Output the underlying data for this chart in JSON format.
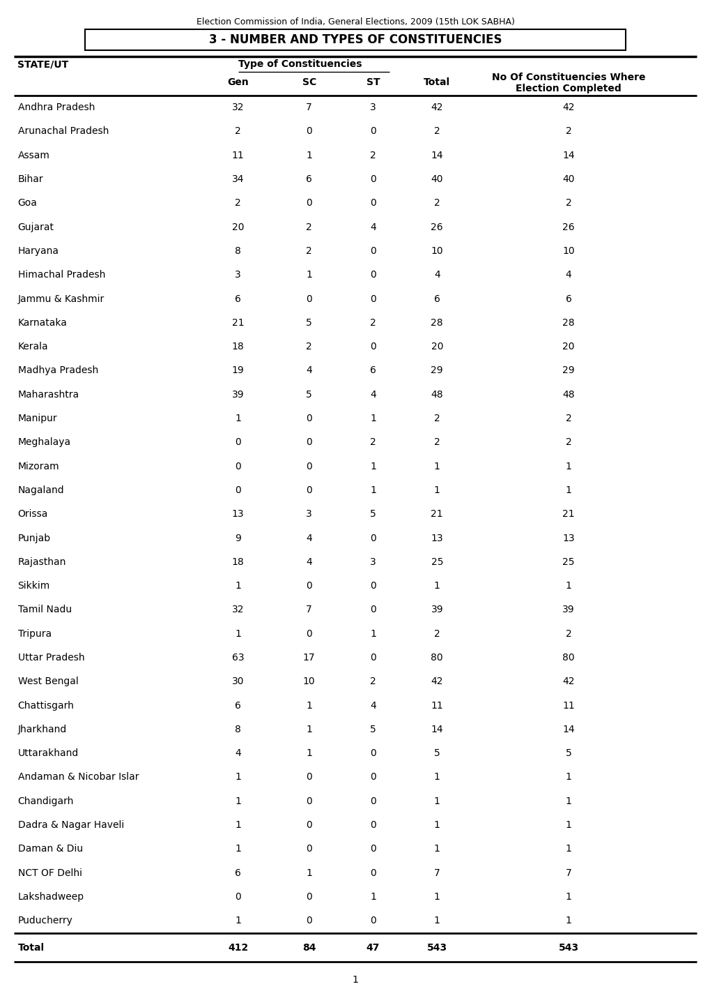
{
  "super_title": "Election Commission of India, General Elections, 2009 (15th LOK SABHA)",
  "title": "3 - NUMBER AND TYPES OF CONSTITUENCIES",
  "col_header1": "STATE/UT",
  "col_header2": "Type of Constituencies",
  "col_headers": [
    "Gen",
    "SC",
    "ST",
    "Total",
    "No Of Constituencies Where\nElection Completed"
  ],
  "rows": [
    [
      "Andhra Pradesh",
      32,
      7,
      3,
      42,
      42
    ],
    [
      "Arunachal Pradesh",
      2,
      0,
      0,
      2,
      2
    ],
    [
      "Assam",
      11,
      1,
      2,
      14,
      14
    ],
    [
      "Bihar",
      34,
      6,
      0,
      40,
      40
    ],
    [
      "Goa",
      2,
      0,
      0,
      2,
      2
    ],
    [
      "Gujarat",
      20,
      2,
      4,
      26,
      26
    ],
    [
      "Haryana",
      8,
      2,
      0,
      10,
      10
    ],
    [
      "Himachal Pradesh",
      3,
      1,
      0,
      4,
      4
    ],
    [
      "Jammu & Kashmir",
      6,
      0,
      0,
      6,
      6
    ],
    [
      "Karnataka",
      21,
      5,
      2,
      28,
      28
    ],
    [
      "Kerala",
      18,
      2,
      0,
      20,
      20
    ],
    [
      "Madhya Pradesh",
      19,
      4,
      6,
      29,
      29
    ],
    [
      "Maharashtra",
      39,
      5,
      4,
      48,
      48
    ],
    [
      "Manipur",
      1,
      0,
      1,
      2,
      2
    ],
    [
      "Meghalaya",
      0,
      0,
      2,
      2,
      2
    ],
    [
      "Mizoram",
      0,
      0,
      1,
      1,
      1
    ],
    [
      "Nagaland",
      0,
      0,
      1,
      1,
      1
    ],
    [
      "Orissa",
      13,
      3,
      5,
      21,
      21
    ],
    [
      "Punjab",
      9,
      4,
      0,
      13,
      13
    ],
    [
      "Rajasthan",
      18,
      4,
      3,
      25,
      25
    ],
    [
      "Sikkim",
      1,
      0,
      0,
      1,
      1
    ],
    [
      "Tamil Nadu",
      32,
      7,
      0,
      39,
      39
    ],
    [
      "Tripura",
      1,
      0,
      1,
      2,
      2
    ],
    [
      "Uttar Pradesh",
      63,
      17,
      0,
      80,
      80
    ],
    [
      "West Bengal",
      30,
      10,
      2,
      42,
      42
    ],
    [
      "Chattisgarh",
      6,
      1,
      4,
      11,
      11
    ],
    [
      "Jharkhand",
      8,
      1,
      5,
      14,
      14
    ],
    [
      "Uttarakhand",
      4,
      1,
      0,
      5,
      5
    ],
    [
      "Andaman & Nicobar Islar",
      1,
      0,
      0,
      1,
      1
    ],
    [
      "Chandigarh",
      1,
      0,
      0,
      1,
      1
    ],
    [
      "Dadra & Nagar Haveli",
      1,
      0,
      0,
      1,
      1
    ],
    [
      "Daman & Diu",
      1,
      0,
      0,
      1,
      1
    ],
    [
      "NCT OF Delhi",
      6,
      1,
      0,
      7,
      7
    ],
    [
      "Lakshadweep",
      0,
      0,
      1,
      1,
      1
    ],
    [
      "Puducherry",
      1,
      0,
      0,
      1,
      1
    ]
  ],
  "total_row": [
    "Total",
    412,
    84,
    47,
    543,
    543
  ],
  "bg_color": "#ffffff",
  "text_color": "#000000",
  "header_fontsize": 10,
  "data_fontsize": 10,
  "title_fontsize": 13,
  "supertitle_fontsize": 9
}
